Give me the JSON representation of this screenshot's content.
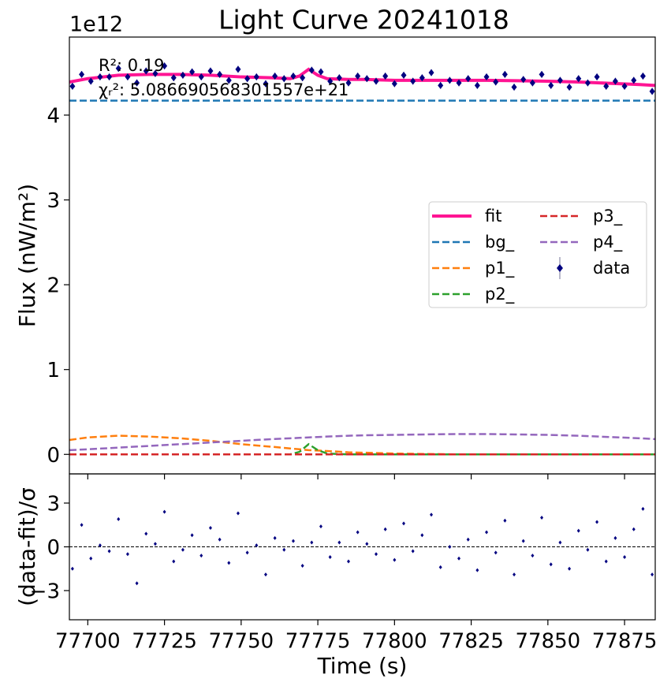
{
  "chart_data": [
    {
      "type": "line",
      "title": "Light Curve 20241018",
      "offset_text": "1e12",
      "ylabel": "Flux (nW/m²)",
      "annotations": [
        "R²: 0.19",
        "χᵣ²: 5.086690568301557e+21"
      ],
      "xlim": [
        77694,
        77885
      ],
      "xticks": [
        77700,
        77725,
        77750,
        77775,
        77800,
        77825,
        77850,
        77875
      ],
      "ylim": [
        -0.23,
        4.92
      ],
      "yticks": [
        0,
        1,
        2,
        3,
        4
      ],
      "legend": "center right",
      "x": [
        77694,
        77700,
        77710,
        77720,
        77730,
        77740,
        77750,
        77760,
        77766,
        77769,
        77772,
        77775,
        77778,
        77785,
        77790,
        77800,
        77810,
        77820,
        77830,
        77840,
        77850,
        77860,
        77870,
        77880,
        77885
      ],
      "series": [
        {
          "name": "fit",
          "color": "#ff1493",
          "linestyle": "solid",
          "values": [
            4.39,
            4.43,
            4.47,
            4.48,
            4.48,
            4.47,
            4.45,
            4.44,
            4.43,
            4.46,
            4.54,
            4.47,
            4.43,
            4.42,
            4.42,
            4.41,
            4.41,
            4.41,
            4.41,
            4.405,
            4.4,
            4.39,
            4.375,
            4.36,
            4.35
          ]
        },
        {
          "name": "bg_",
          "color": "#1f77b4",
          "linestyle": "dashed",
          "values": [
            4.17,
            4.17,
            4.17,
            4.17,
            4.17,
            4.17,
            4.17,
            4.17,
            4.17,
            4.17,
            4.17,
            4.17,
            4.17,
            4.17,
            4.17,
            4.17,
            4.17,
            4.17,
            4.17,
            4.17,
            4.17,
            4.17,
            4.17,
            4.17,
            4.17
          ]
        },
        {
          "name": "p1_",
          "color": "#ff7f0e",
          "linestyle": "dashed",
          "values": [
            0.17,
            0.2,
            0.22,
            0.21,
            0.19,
            0.16,
            0.12,
            0.09,
            0.07,
            0.06,
            0.05,
            0.045,
            0.04,
            0.025,
            0.02,
            0.01,
            0.005,
            0,
            0,
            0,
            0,
            0,
            0,
            0,
            0
          ]
        },
        {
          "name": "p2_",
          "color": "#2ca02c",
          "linestyle": "dashed",
          "values": [
            0,
            0,
            0,
            0,
            0,
            0,
            0,
            0,
            0,
            0.03,
            0.12,
            0.05,
            0.01,
            0,
            0,
            0,
            0,
            0,
            0,
            0,
            0,
            0,
            0,
            0,
            0
          ]
        },
        {
          "name": "p3_",
          "color": "#d62728",
          "linestyle": "dashed",
          "values": [
            0,
            0,
            0,
            0,
            0,
            0,
            0,
            0,
            0,
            0,
            0,
            0,
            0,
            0,
            0,
            0,
            0,
            0,
            0,
            0,
            0,
            0,
            0,
            0,
            0
          ]
        },
        {
          "name": "p4_",
          "color": "#9467bd",
          "linestyle": "dashed",
          "values": [
            0.05,
            0.06,
            0.08,
            0.1,
            0.12,
            0.14,
            0.16,
            0.18,
            0.19,
            0.195,
            0.2,
            0.205,
            0.21,
            0.22,
            0.225,
            0.23,
            0.235,
            0.24,
            0.24,
            0.235,
            0.23,
            0.22,
            0.205,
            0.19,
            0.18
          ]
        }
      ],
      "data": {
        "name": "data",
        "color": "#000080",
        "x": [
          77695,
          77698,
          77701,
          77704,
          77707,
          77710,
          77713,
          77716,
          77719,
          77722,
          77725,
          77728,
          77731,
          77734,
          77737,
          77740,
          77743,
          77746,
          77749,
          77752,
          77755,
          77758,
          77761,
          77764,
          77767,
          77770,
          77773,
          77776,
          77779,
          77782,
          77785,
          77788,
          77791,
          77794,
          77797,
          77800,
          77803,
          77806,
          77809,
          77812,
          77815,
          77818,
          77821,
          77824,
          77827,
          77830,
          77833,
          77836,
          77839,
          77842,
          77845,
          77848,
          77851,
          77854,
          77857,
          77860,
          77863,
          77866,
          77869,
          77872,
          77875,
          77878,
          77881,
          77884
        ],
        "values": [
          4.34,
          4.48,
          4.4,
          4.45,
          4.45,
          4.55,
          4.45,
          4.38,
          4.52,
          4.49,
          4.58,
          4.44,
          4.47,
          4.51,
          4.45,
          4.52,
          4.48,
          4.41,
          4.54,
          4.43,
          4.45,
          4.37,
          4.46,
          4.43,
          4.46,
          4.44,
          4.53,
          4.51,
          4.4,
          4.44,
          4.38,
          4.46,
          4.43,
          4.4,
          4.46,
          4.37,
          4.47,
          4.4,
          4.44,
          4.5,
          4.35,
          4.41,
          4.38,
          4.43,
          4.35,
          4.45,
          4.39,
          4.48,
          4.33,
          4.42,
          4.38,
          4.48,
          4.35,
          4.41,
          4.33,
          4.43,
          4.38,
          4.45,
          4.34,
          4.4,
          4.34,
          4.41,
          4.46,
          4.28
        ],
        "errors": [
          0.04,
          0.04,
          0.04,
          0.04,
          0.04,
          0.04,
          0.04,
          0.04,
          0.04,
          0.04,
          0.04,
          0.04,
          0.04,
          0.04,
          0.04,
          0.04,
          0.04,
          0.04,
          0.04,
          0.04,
          0.04,
          0.04,
          0.04,
          0.04,
          0.04,
          0.04,
          0.04,
          0.04,
          0.04,
          0.04,
          0.04,
          0.04,
          0.04,
          0.04,
          0.04,
          0.04,
          0.04,
          0.04,
          0.04,
          0.04,
          0.04,
          0.04,
          0.04,
          0.04,
          0.04,
          0.04,
          0.04,
          0.04,
          0.04,
          0.04,
          0.04,
          0.04,
          0.04,
          0.04,
          0.04,
          0.04,
          0.04,
          0.04,
          0.04,
          0.04,
          0.04,
          0.04,
          0.04,
          0.04
        ]
      }
    },
    {
      "type": "scatter",
      "xlabel": "Time (s)",
      "ylabel": "(data-fit)/σ",
      "color": "#000080",
      "xlim": [
        77694,
        77885
      ],
      "xticks": [
        77700,
        77725,
        77750,
        77775,
        77800,
        77825,
        77850,
        77875
      ],
      "ylim": [
        -5,
        5
      ],
      "yticks": [
        {
          "value": -3,
          "label": "−3"
        },
        0,
        3
      ],
      "x": [
        77695,
        77698,
        77701,
        77704,
        77707,
        77710,
        77713,
        77716,
        77719,
        77722,
        77725,
        77728,
        77731,
        77734,
        77737,
        77740,
        77743,
        77746,
        77749,
        77752,
        77755,
        77758,
        77761,
        77764,
        77767,
        77770,
        77773,
        77776,
        77779,
        77782,
        77785,
        77788,
        77791,
        77794,
        77797,
        77800,
        77803,
        77806,
        77809,
        77812,
        77815,
        77818,
        77821,
        77824,
        77827,
        77830,
        77833,
        77836,
        77839,
        77842,
        77845,
        77848,
        77851,
        77854,
        77857,
        77860,
        77863,
        77866,
        77869,
        77872,
        77875,
        77878,
        77881,
        77884
      ],
      "values": [
        -1.5,
        1.5,
        -0.8,
        0.1,
        -0.3,
        1.9,
        -0.5,
        -2.5,
        0.9,
        0.2,
        2.4,
        -1.0,
        -0.2,
        0.8,
        -0.6,
        1.3,
        0.5,
        -1.1,
        2.3,
        -0.4,
        0.1,
        -1.9,
        0.6,
        -0.2,
        0.4,
        -1.3,
        0.3,
        1.4,
        -0.7,
        0.3,
        -1.0,
        1.0,
        0.2,
        -0.5,
        1.2,
        -0.9,
        1.6,
        -0.3,
        0.8,
        2.2,
        -1.4,
        0.0,
        -0.8,
        0.5,
        -1.6,
        1.0,
        -0.4,
        1.8,
        -1.9,
        0.4,
        -0.6,
        2.0,
        -1.2,
        0.3,
        -1.5,
        1.1,
        -0.2,
        1.7,
        -1.0,
        0.6,
        -0.7,
        1.2,
        2.6,
        -1.9
      ]
    }
  ]
}
